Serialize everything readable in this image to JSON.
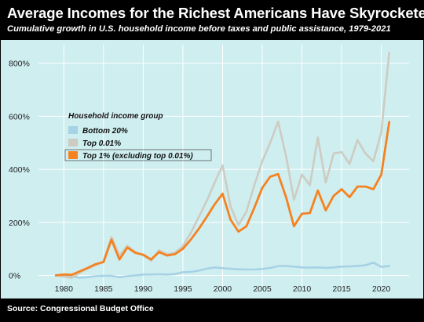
{
  "title": "Average Incomes for the Richest Americans Have Skyrocketed",
  "subtitle": "Cumulative growth in U.S. household income before taxes and public assistance, 1979-2021",
  "source": "Source: Congressional Budget Office",
  "colors": {
    "background": "#cfeef0",
    "bottom20": "#a6d2e6",
    "top001": "#cdccc2",
    "top1": "#f58220",
    "grid": "#ffffff",
    "header": "#000000"
  },
  "chart_data": {
    "type": "line",
    "title": "Average Incomes for the Richest Americans Have Skyrocketed",
    "subtitle": "Cumulative growth in U.S. household income before taxes and public assistance, 1979-2021",
    "xlabel": "",
    "ylabel": "",
    "xlim": [
      1977.2,
      2023.5
    ],
    "ylim": [
      -40,
      870
    ],
    "x_ticks": [
      1980,
      1985,
      1990,
      1995,
      2000,
      2005,
      2010,
      2015,
      2020
    ],
    "x_tick_labels": [
      "1980",
      "1985",
      "1990",
      "1995",
      "2000",
      "2005",
      "2010",
      "2015",
      "2020"
    ],
    "y_ticks": [
      0,
      200,
      400,
      600,
      800
    ],
    "y_tick_labels": [
      "0%",
      "200%",
      "400%",
      "600%",
      "800%"
    ],
    "grid": true,
    "legend": {
      "title": "Household income group",
      "placement": "left-middle"
    },
    "x": [
      1979,
      1980,
      1981,
      1982,
      1983,
      1984,
      1985,
      1986,
      1987,
      1988,
      1989,
      1990,
      1991,
      1992,
      1993,
      1994,
      1995,
      1996,
      1997,
      1998,
      1999,
      2000,
      2001,
      2002,
      2003,
      2004,
      2005,
      2006,
      2007,
      2008,
      2009,
      2010,
      2011,
      2012,
      2013,
      2014,
      2015,
      2016,
      2017,
      2018,
      2019,
      2020,
      2021
    ],
    "series": [
      {
        "name": "Bottom 20%",
        "color": "#a6d2e6",
        "values": [
          0,
          -2,
          -5,
          -9,
          -7,
          -3,
          -2,
          -2,
          -7,
          -3,
          0,
          3,
          3,
          4,
          3,
          5,
          12,
          13,
          18,
          25,
          30,
          27,
          25,
          23,
          22,
          22,
          24,
          28,
          35,
          35,
          33,
          30,
          29,
          30,
          28,
          30,
          33,
          34,
          35,
          38,
          48,
          32,
          35
        ]
      },
      {
        "name": "Top 0.01%",
        "color": "#cdccc2",
        "values": [
          0,
          -5,
          -10,
          10,
          25,
          38,
          52,
          145,
          75,
          112,
          88,
          75,
          55,
          95,
          80,
          85,
          110,
          160,
          220,
          280,
          350,
          415,
          260,
          190,
          240,
          340,
          430,
          500,
          580,
          450,
          285,
          380,
          340,
          520,
          350,
          460,
          465,
          420,
          510,
          460,
          430,
          540,
          840
        ]
      },
      {
        "name": "Top 1% (excluding top 0.01%)",
        "color": "#f58220",
        "values": [
          0,
          3,
          2,
          15,
          28,
          42,
          50,
          135,
          60,
          105,
          85,
          78,
          60,
          88,
          75,
          80,
          100,
          135,
          175,
          220,
          268,
          308,
          210,
          165,
          185,
          255,
          330,
          372,
          382,
          295,
          185,
          232,
          235,
          320,
          245,
          300,
          325,
          295,
          335,
          335,
          325,
          380,
          578
        ]
      }
    ]
  }
}
